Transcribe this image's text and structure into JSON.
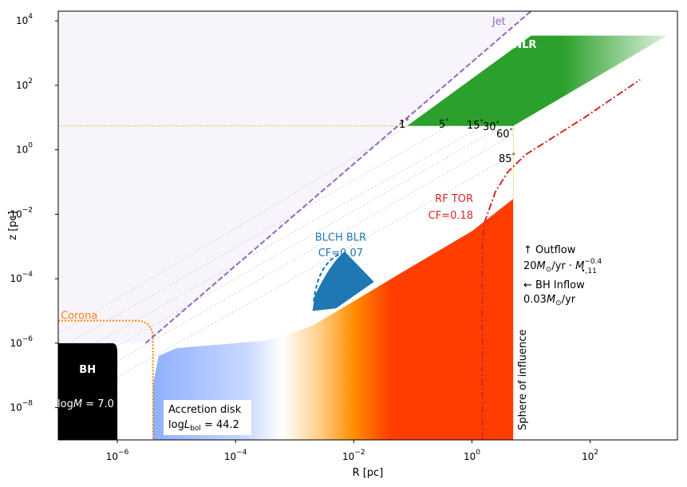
{
  "chart_data": {
    "type": "scatter",
    "title": "",
    "xlabel": "R [pc]",
    "ylabel": "z [pc]",
    "xscale": "log",
    "yscale": "log",
    "xlim": [
      1e-07,
      3000
    ],
    "ylim": [
      1e-09,
      20000.0
    ],
    "x_ticks": [
      {
        "value": 1e-06,
        "base": "10",
        "exp": "−6"
      },
      {
        "value": 0.0001,
        "base": "10",
        "exp": "−4"
      },
      {
        "value": 0.01,
        "base": "10",
        "exp": "−2"
      },
      {
        "value": 1,
        "base": "10",
        "exp": "0"
      },
      {
        "value": 100,
        "base": "10",
        "exp": "2"
      }
    ],
    "y_ticks": [
      {
        "value": 1e-08,
        "base": "10",
        "exp": "−8"
      },
      {
        "value": 1e-06,
        "base": "10",
        "exp": "−6"
      },
      {
        "value": 0.0001,
        "base": "10",
        "exp": "−4"
      },
      {
        "value": 0.01,
        "base": "10",
        "exp": "−2"
      },
      {
        "value": 1,
        "base": "10",
        "exp": "0"
      },
      {
        "value": 100,
        "base": "10",
        "exp": "2"
      },
      {
        "value": 10000,
        "base": "10",
        "exp": "4"
      }
    ],
    "grid": false,
    "colors": {
      "jet": "#9467bd",
      "nlr": "#2ca02c",
      "torus": "#d62728",
      "blr": "#1f77b4",
      "corona": "#ff7f0e",
      "bh": "#000000",
      "disk_inner": "#8fb0ff",
      "disk_outer": "#ff3d00",
      "outflow_region": "#f7f4fb",
      "guide": "#cccc33"
    },
    "black_hole": {
      "label": "BH",
      "mass_label": "log",
      "mass_symbol": "M",
      "mass_value": " = 7.0",
      "x_max": 1e-06,
      "z_max": 1e-06
    },
    "corona": {
      "label": "Corona",
      "radius": 4e-06,
      "height": 5e-06
    },
    "accretion_disk": {
      "label": "Accretion disk",
      "lbol_prefix": "log",
      "lbol_symbol": "L",
      "lbol_sub": "bol",
      "lbol_value": " = 44.2",
      "x_min": 4e-06,
      "x_max": 5
    },
    "jet": {
      "label": "Jet",
      "x": [
        3e-06,
        10
      ],
      "z": [
        1e-06,
        20000
      ]
    },
    "nlr": {
      "label": "NLR",
      "x_min": 0.08,
      "x_max": 2000,
      "z_min": 5.5,
      "z_max": 3500
    },
    "blr": {
      "label": "BLCH BLR",
      "cf_label": "CF=0.07",
      "x_min": 0.002,
      "x_max": 0.02
    },
    "torus": {
      "label": "RF TOR",
      "cf_label": "CF=0.18",
      "x": [
        1.5,
        1.5,
        1.6,
        2.5,
        4,
        8,
        20,
        80,
        700
      ],
      "z": [
        1e-09,
        0.001,
        0.005,
        0.05,
        0.2,
        0.7,
        2,
        10,
        150
      ]
    },
    "sphere_of_influence": {
      "label": "Sphere of influence",
      "radius": 5
    },
    "opening_angles": [
      {
        "label": "1",
        "deg": "°",
        "x": 0.08
      },
      {
        "label": "5",
        "deg": "°",
        "x": 0.4
      },
      {
        "label": "15",
        "deg": "°",
        "x": 1.5
      },
      {
        "label": "30",
        "deg": "°",
        "x": 3
      },
      {
        "label": "60",
        "deg": "°",
        "x": 5
      },
      {
        "label": "85",
        "deg": "°",
        "x": 5
      }
    ],
    "outflow": {
      "arrow": "↑",
      "label": "Outflow",
      "rate_prefix": "20",
      "rate_unit": "/yr · ",
      "rate_exp": "−0.4",
      "rate_sub": "•,11"
    },
    "inflow": {
      "arrow": "←",
      "label": "BH Inflow",
      "rate": "0.03",
      "rate_unit": "/yr"
    }
  }
}
